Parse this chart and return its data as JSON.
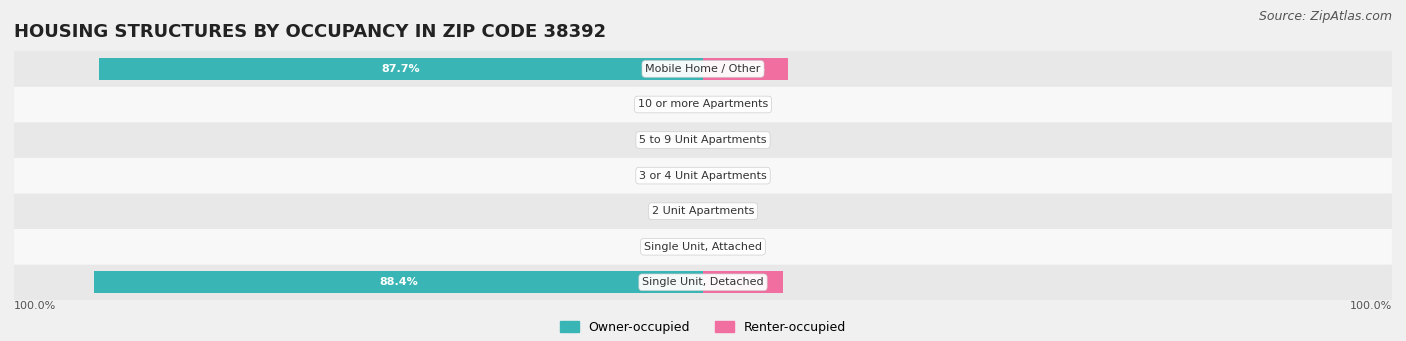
{
  "title": "HOUSING STRUCTURES BY OCCUPANCY IN ZIP CODE 38392",
  "source": "Source: ZipAtlas.com",
  "categories": [
    "Single Unit, Detached",
    "Single Unit, Attached",
    "2 Unit Apartments",
    "3 or 4 Unit Apartments",
    "5 to 9 Unit Apartments",
    "10 or more Apartments",
    "Mobile Home / Other"
  ],
  "owner_pct": [
    88.4,
    0.0,
    0.0,
    0.0,
    0.0,
    0.0,
    87.7
  ],
  "renter_pct": [
    11.6,
    0.0,
    0.0,
    0.0,
    0.0,
    0.0,
    12.4
  ],
  "owner_color": "#3ab5b5",
  "renter_color": "#f06fa0",
  "owner_color_light": "#7ed0d0",
  "renter_color_light": "#f5a0c0",
  "bg_color": "#f0f0f0",
  "row_bg_color": "#e8e8e8",
  "row_alt_bg": "#ffffff",
  "label_bg": "#ffffff",
  "axis_label_left": "100.0%",
  "axis_label_right": "100.0%",
  "legend_owner": "Owner-occupied",
  "legend_renter": "Renter-occupied",
  "title_fontsize": 13,
  "source_fontsize": 9,
  "bar_max": 100.0,
  "figsize": [
    14.06,
    3.41
  ],
  "dpi": 100
}
